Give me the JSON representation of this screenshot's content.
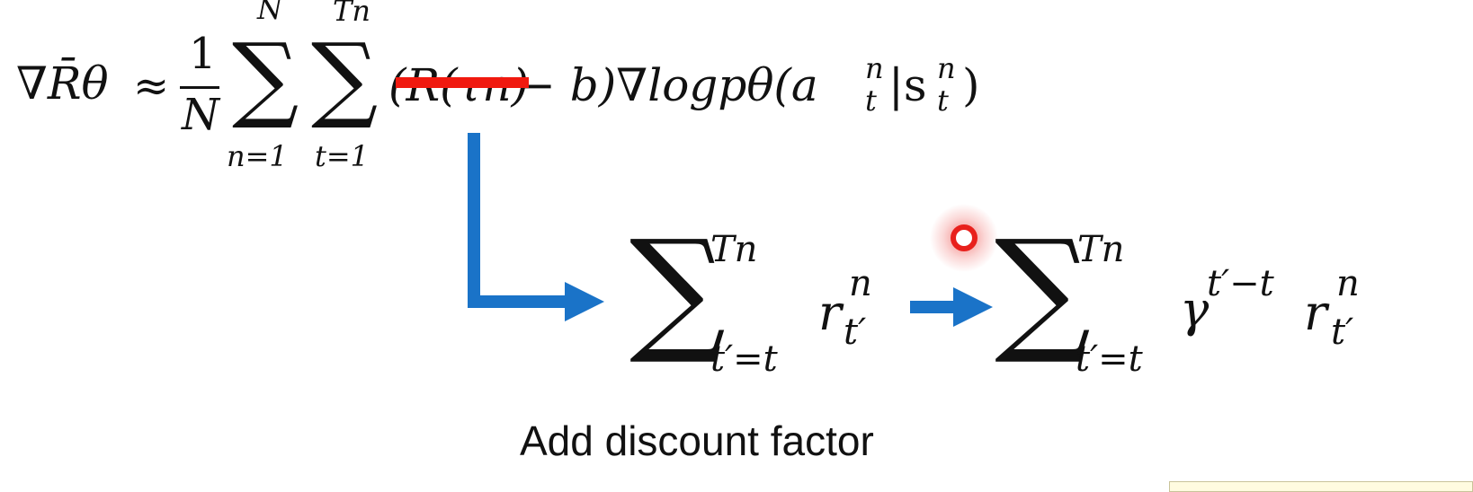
{
  "formula_main": {
    "lhs": "∇R̄θ",
    "approx": "≈",
    "frac_num": "1",
    "frac_den": "N",
    "sum1": {
      "sup": "N",
      "sub": "n=1"
    },
    "sum2": {
      "sup": "Tn",
      "sub": "t=1"
    },
    "struck_term": "(R(τn)",
    "rest": "− b)∇logpθ(a",
    "a_sup": "n",
    "a_sub": "t",
    "bar": "|s",
    "s_sup": "n",
    "s_sub": "t",
    "close": ")"
  },
  "formula_reward_to_go": {
    "sup": "Tn",
    "sub": "t′=t",
    "term": "r",
    "term_sup": "n",
    "term_sub": "t′"
  },
  "formula_discounted": {
    "sup": "Tn",
    "sub": "t′=t",
    "gamma": "γ",
    "gamma_exp": "t′−t",
    "term": "r",
    "term_sup": "n",
    "term_sub": "t′"
  },
  "caption": "Add discount factor",
  "colors": {
    "strike": "#f0190f",
    "arrow": "#1a73c8",
    "pointer": "#e8201c"
  }
}
